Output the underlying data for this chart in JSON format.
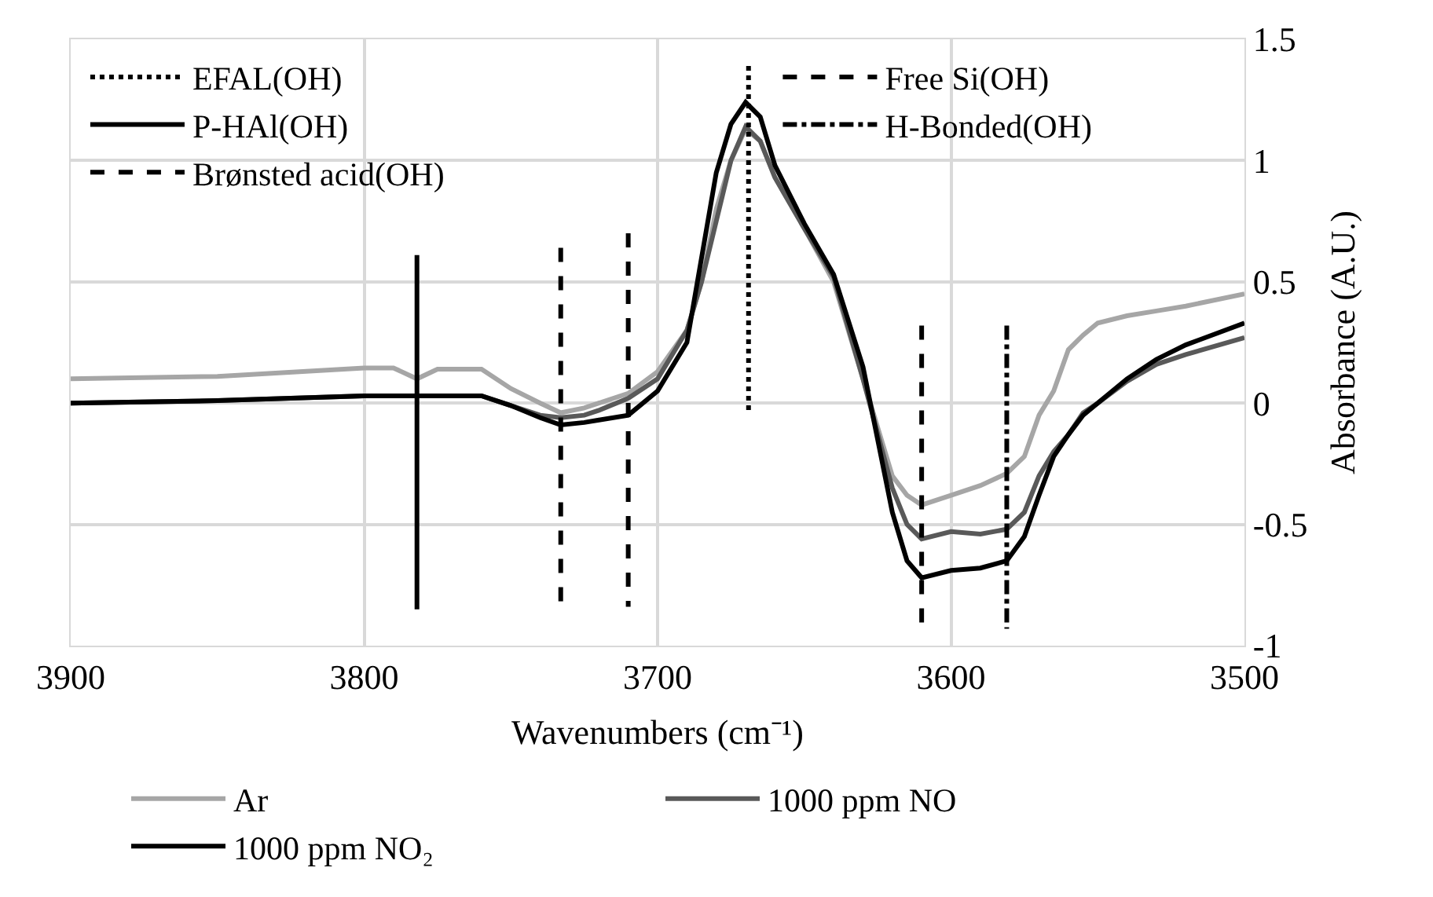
{
  "chart_data": {
    "type": "line",
    "xlabel": "Wavenumbers (cm⁻¹)",
    "ylabel": "Absorbance (A.U.)",
    "x": [
      3900,
      3850,
      3800,
      3790,
      3782,
      3775,
      3760,
      3750,
      3740,
      3733,
      3725,
      3720,
      3710,
      3700,
      3690,
      3685,
      3680,
      3675,
      3670,
      3665,
      3660,
      3650,
      3640,
      3630,
      3620,
      3615,
      3610,
      3600,
      3590,
      3581,
      3575,
      3570,
      3565,
      3560,
      3555,
      3550,
      3540,
      3530,
      3520,
      3500
    ],
    "xlim": [
      3900,
      3500
    ],
    "xticks": [
      3900,
      3800,
      3700,
      3600,
      3500
    ],
    "ylim": [
      -1,
      1.5
    ],
    "yticks": [
      -1,
      -0.5,
      0,
      0.5,
      1,
      1.5
    ],
    "grid": true,
    "legend": "bottom",
    "line_style": "solid",
    "marker": "none",
    "series": [
      {
        "name": "Ar",
        "color": "#a6a6a6",
        "values": [
          0.1,
          0.11,
          0.145,
          0.145,
          0.1,
          0.14,
          0.14,
          0.06,
          0.0,
          -0.04,
          -0.02,
          0.0,
          0.04,
          0.13,
          0.3,
          0.5,
          0.8,
          1.0,
          1.13,
          1.08,
          0.93,
          0.72,
          0.5,
          0.1,
          -0.3,
          -0.38,
          -0.42,
          -0.38,
          -0.34,
          -0.29,
          -0.22,
          -0.05,
          0.05,
          0.22,
          0.28,
          0.33,
          0.36,
          0.38,
          0.4,
          0.45
        ]
      },
      {
        "name": "1000 ppm NO",
        "color": "#595959",
        "values": [
          0,
          0.01,
          0.03,
          0.03,
          0.03,
          0.03,
          0.03,
          -0.01,
          -0.05,
          -0.06,
          -0.05,
          -0.03,
          0.02,
          0.1,
          0.3,
          0.5,
          0.75,
          1.0,
          1.14,
          1.08,
          0.93,
          0.72,
          0.52,
          0.1,
          -0.35,
          -0.5,
          -0.56,
          -0.53,
          -0.54,
          -0.52,
          -0.45,
          -0.3,
          -0.2,
          -0.13,
          -0.04,
          0.0,
          0.09,
          0.16,
          0.2,
          0.27
        ]
      },
      {
        "name": "1000 ppm NO₂",
        "color": "#000000",
        "values": [
          0,
          0.01,
          0.03,
          0.03,
          0.03,
          0.03,
          0.03,
          -0.01,
          -0.06,
          -0.09,
          -0.08,
          -0.07,
          -0.05,
          0.05,
          0.25,
          0.6,
          0.95,
          1.15,
          1.24,
          1.18,
          0.98,
          0.74,
          0.53,
          0.15,
          -0.45,
          -0.65,
          -0.72,
          -0.69,
          -0.68,
          -0.65,
          -0.55,
          -0.38,
          -0.22,
          -0.13,
          -0.05,
          0.0,
          0.1,
          0.18,
          0.24,
          0.33
        ]
      },
      {
        "name": "EFAL(OH)",
        "color": "#000000",
        "line_style": "dotted",
        "x": [
          3669,
          3669
        ],
        "values": [
          1.39,
          -0.03
        ]
      },
      {
        "name": "P-HAl(OH)",
        "color": "#000000",
        "line_style": "solid",
        "x": [
          3782,
          3782
        ],
        "values": [
          0.61,
          -0.85
        ]
      },
      {
        "name": "Brønsted acid(OH)",
        "color": "#000000",
        "line_style": "dashed",
        "x": [
          3733,
          3733,
          null,
          3710,
          3710
        ],
        "values": [
          0.64,
          -0.82,
          null,
          0.7,
          -0.84
        ]
      },
      {
        "name": "Free Si(OH)",
        "color": "#000000",
        "line_style": "dashed",
        "x": [
          3610,
          3610
        ],
        "values": [
          0.32,
          -0.91
        ]
      },
      {
        "name": "H-Bonded(OH)",
        "color": "#000000",
        "line_style": "dashdot",
        "x": [
          3581,
          3581
        ],
        "values": [
          0.32,
          -0.93
        ]
      }
    ]
  }
}
